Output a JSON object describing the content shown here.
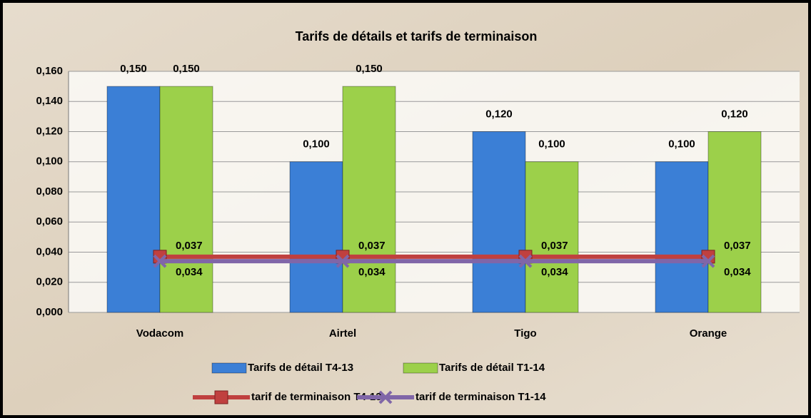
{
  "chart_data": {
    "type": "bar",
    "title": "Tarifs de détails et tarifs de terminaison",
    "categories": [
      "Vodacom",
      "Airtel",
      "Tigo",
      "Orange"
    ],
    "ylim": [
      0,
      0.16
    ],
    "yticks": [
      {
        "value": 0,
        "label": "0,000"
      },
      {
        "value": 0.02,
        "label": "0,020"
      },
      {
        "value": 0.04,
        "label": "0,040"
      },
      {
        "value": 0.06,
        "label": "0,060"
      },
      {
        "value": 0.08,
        "label": "0,080"
      },
      {
        "value": 0.1,
        "label": "0,100"
      },
      {
        "value": 0.12,
        "label": "0,120"
      },
      {
        "value": 0.14,
        "label": "0,140"
      },
      {
        "value": 0.16,
        "label": "0,160"
      }
    ],
    "grid": true,
    "legend": "bottom",
    "series": [
      {
        "name": "Tarifs de détail T4-13",
        "type": "bar",
        "color": "#3b7fd6",
        "values": [
          0.15,
          0.1,
          0.12,
          0.1
        ],
        "value_labels": [
          "0,150",
          "0,100",
          "0,120",
          "0,100"
        ]
      },
      {
        "name": "Tarifs de détail T1-14",
        "type": "bar",
        "color": "#9cd04a",
        "values": [
          0.15,
          0.15,
          0.1,
          0.12
        ],
        "value_labels": [
          "0,150",
          "0,150",
          "0,100",
          "0,120"
        ]
      },
      {
        "name": "tarif de terminaison T4-13",
        "type": "line",
        "marker": "square",
        "color": "#c0403f",
        "values": [
          0.037,
          0.037,
          0.037,
          0.037
        ],
        "value_labels": [
          "0,037",
          "0,037",
          "0,037",
          "0,037"
        ]
      },
      {
        "name": "tarif de terminaison T1-14",
        "type": "line",
        "marker": "x",
        "color": "#8066a8",
        "values": [
          0.034,
          0.034,
          0.034,
          0.034
        ],
        "value_labels": [
          "0,034",
          "0,034",
          "0,034",
          "0,034"
        ]
      }
    ]
  }
}
